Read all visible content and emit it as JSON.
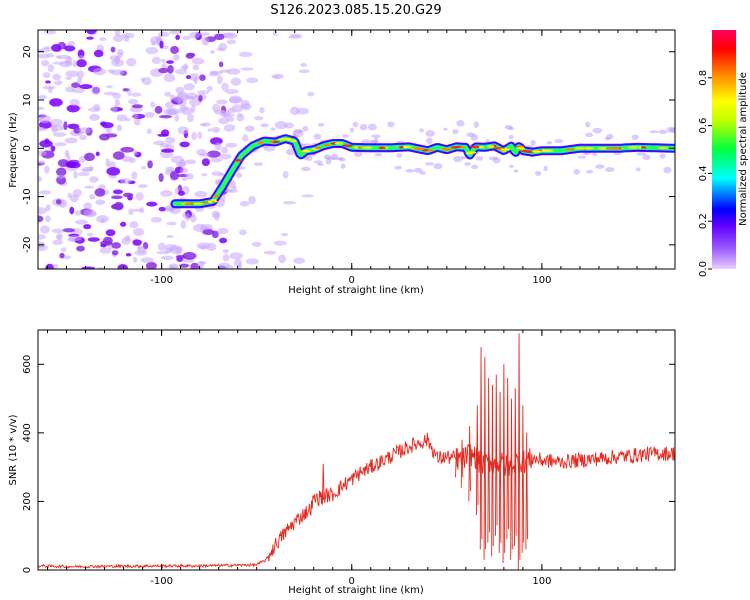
{
  "title": "S126.2023.085.15.20.G29",
  "chart_data": [
    {
      "type": "heatmap",
      "xlabel": "Height of straight line (km)",
      "ylabel": "Frequency (Hz)",
      "xlim": [
        -165,
        170
      ],
      "ylim": [
        -25,
        24.5
      ],
      "xticks": [
        -100,
        0,
        100
      ],
      "xtick_labels": [
        "-100",
        "0",
        "100"
      ],
      "yticks": [
        -20,
        -10,
        0,
        10,
        20
      ],
      "ytick_labels": [
        "-20",
        "-10",
        "0",
        "10",
        "20"
      ],
      "ridge": {
        "x": [
          -93,
          -80,
          -73,
          -68,
          -62,
          -58,
          -52,
          -46,
          -40,
          -35,
          -30,
          -27,
          -24,
          -20,
          -15,
          -10,
          -5,
          0,
          10,
          20,
          30,
          40,
          45,
          50,
          55,
          60,
          62,
          65,
          70,
          75,
          80,
          84,
          86,
          88,
          90,
          95,
          100,
          110,
          120,
          130,
          140,
          150,
          160,
          170
        ],
        "y": [
          -11.5,
          -11.5,
          -11,
          -8,
          -4,
          -1.5,
          0.5,
          1.5,
          1.3,
          2,
          1.5,
          -1.5,
          -0.5,
          -0.3,
          0.5,
          1,
          1,
          0.2,
          0.1,
          0.1,
          0.3,
          -0.5,
          0.2,
          -0.3,
          0.3,
          0.2,
          -1.5,
          0.3,
          0.2,
          0.5,
          -0.5,
          0.5,
          -1,
          0.5,
          -0.5,
          -0.8,
          -0.5,
          -0.5,
          0,
          0,
          0,
          0.2,
          0.1,
          0
        ]
      },
      "colorbar": {
        "label": "Normalized spectral amplitude",
        "range": [
          0,
          1
        ],
        "ticks": [
          0,
          0.2,
          0.4,
          0.6,
          0.8
        ],
        "tick_labels": [
          "0.0",
          "0.2",
          "0.4",
          "0.6",
          "0.8"
        ],
        "colormap": [
          "#d9b3ff",
          "#8000ff",
          "#0000ff",
          "#00ffff",
          "#00ff00",
          "#ffff00",
          "#ff8000",
          "#ff0000",
          "#ff0080"
        ]
      },
      "noise_region": [
        -165,
        -60
      ]
    },
    {
      "type": "line",
      "xlabel": "Height of straight line (km)",
      "ylabel": "SNR (10 * v/v)",
      "xlim": [
        -165,
        170
      ],
      "ylim": [
        0,
        700
      ],
      "xticks": [
        -100,
        0,
        100
      ],
      "xtick_labels": [
        "-100",
        "0",
        "100"
      ],
      "yticks": [
        0,
        200,
        400,
        600
      ],
      "ytick_labels": [
        "0",
        "200",
        "400",
        "600"
      ],
      "color": "#e8281e",
      "series": [
        {
          "x": [
            -165,
            -150,
            -120,
            -100,
            -80,
            -60,
            -50,
            -45,
            -40,
            -35,
            -30,
            -25,
            -22,
            -20,
            -15,
            -10,
            -5,
            0,
            5,
            10,
            15,
            20,
            25,
            30,
            35,
            40,
            45,
            50,
            55,
            58,
            60,
            62,
            65,
            68,
            70,
            72,
            75,
            78,
            80,
            83,
            85,
            88,
            90,
            92,
            95,
            100,
            110,
            120,
            130,
            140,
            150,
            160,
            170
          ],
          "values": [
            12,
            10,
            11,
            12,
            12,
            14,
            15,
            30,
            75,
            110,
            140,
            165,
            175,
            205,
            215,
            220,
            245,
            265,
            285,
            300,
            315,
            330,
            345,
            360,
            370,
            380,
            325,
            330,
            325,
            320,
            330,
            340,
            330,
            310,
            300,
            320,
            310,
            315,
            305,
            300,
            310,
            320,
            315,
            320,
            325,
            320,
            315,
            320,
            325,
            330,
            335,
            340,
            340
          ]
        }
      ],
      "spikes": {
        "x": [
          -15,
          55,
          58,
          62,
          66,
          68,
          70,
          72,
          74,
          76,
          78,
          80,
          82,
          84,
          86,
          88,
          90,
          92
        ],
        "hi": [
          310,
          355,
          380,
          420,
          480,
          650,
          620,
          560,
          540,
          570,
          520,
          600,
          560,
          500,
          530,
          690,
          480,
          400
        ],
        "lo": [
          190,
          270,
          240,
          200,
          160,
          60,
          30,
          80,
          40,
          100,
          50,
          20,
          90,
          30,
          70,
          0,
          50,
          60
        ]
      }
    }
  ]
}
